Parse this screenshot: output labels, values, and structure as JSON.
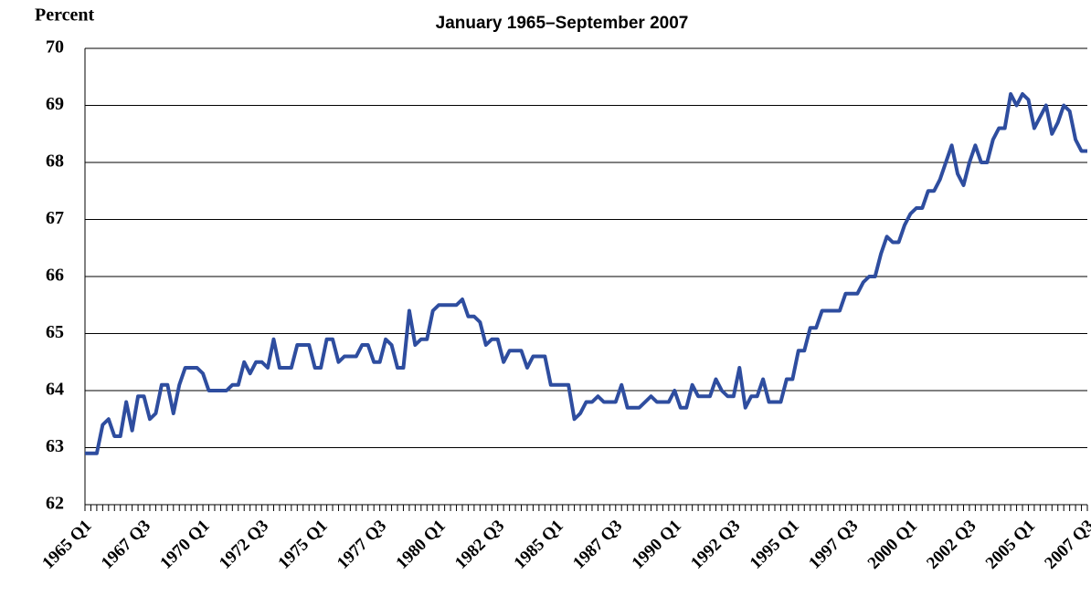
{
  "chart_data": {
    "type": "line",
    "subtitle": "January 1965–September 2007",
    "y_label": "Percent",
    "categories": [
      "1965 Q1",
      null,
      null,
      null,
      null,
      null,
      null,
      null,
      null,
      null,
      "1967 Q3",
      null,
      null,
      null,
      null,
      null,
      null,
      null,
      null,
      null,
      "1970 Q1",
      null,
      null,
      null,
      null,
      null,
      null,
      null,
      null,
      null,
      "1972 Q3",
      null,
      null,
      null,
      null,
      null,
      null,
      null,
      null,
      null,
      "1975 Q1",
      null,
      null,
      null,
      null,
      null,
      null,
      null,
      null,
      null,
      "1977 Q3",
      null,
      null,
      null,
      null,
      null,
      null,
      null,
      null,
      null,
      "1980 Q1",
      null,
      null,
      null,
      null,
      null,
      null,
      null,
      null,
      null,
      "1982 Q3",
      null,
      null,
      null,
      null,
      null,
      null,
      null,
      null,
      null,
      "1985 Q1",
      null,
      null,
      null,
      null,
      null,
      null,
      null,
      null,
      null,
      "1987 Q3",
      null,
      null,
      null,
      null,
      null,
      null,
      null,
      null,
      null,
      "1990 Q1",
      null,
      null,
      null,
      null,
      null,
      null,
      null,
      null,
      null,
      "1992 Q3",
      null,
      null,
      null,
      null,
      null,
      null,
      null,
      null,
      null,
      "1995 Q1",
      null,
      null,
      null,
      null,
      null,
      null,
      null,
      null,
      null,
      "1997 Q3",
      null,
      null,
      null,
      null,
      null,
      null,
      null,
      null,
      null,
      "2000 Q1",
      null,
      null,
      null,
      null,
      null,
      null,
      null,
      null,
      null,
      "2002 Q3",
      null,
      null,
      null,
      null,
      null,
      null,
      null,
      null,
      null,
      "2005 Q1",
      null,
      null,
      null,
      null,
      null,
      null,
      null,
      null,
      null,
      "2007 Q3"
    ],
    "values": [
      62.9,
      62.9,
      62.9,
      63.4,
      63.5,
      63.2,
      63.2,
      63.8,
      63.3,
      63.9,
      63.9,
      63.5,
      63.6,
      64.1,
      64.1,
      63.6,
      64.1,
      64.4,
      64.4,
      64.4,
      64.3,
      64.0,
      64.0,
      64.0,
      64.0,
      64.1,
      64.1,
      64.5,
      64.3,
      64.5,
      64.5,
      64.4,
      64.9,
      64.4,
      64.4,
      64.4,
      64.8,
      64.8,
      64.8,
      64.4,
      64.4,
      64.9,
      64.9,
      64.5,
      64.6,
      64.6,
      64.6,
      64.8,
      64.8,
      64.5,
      64.5,
      64.9,
      64.8,
      64.4,
      64.4,
      65.4,
      64.8,
      64.9,
      64.9,
      65.4,
      65.5,
      65.5,
      65.5,
      65.5,
      65.6,
      65.3,
      65.3,
      65.2,
      64.8,
      64.9,
      64.9,
      64.5,
      64.7,
      64.7,
      64.7,
      64.4,
      64.6,
      64.6,
      64.6,
      64.1,
      64.1,
      64.1,
      64.1,
      63.5,
      63.6,
      63.8,
      63.8,
      63.9,
      63.8,
      63.8,
      63.8,
      64.1,
      63.7,
      63.7,
      63.7,
      63.8,
      63.9,
      63.8,
      63.8,
      63.8,
      64.0,
      63.7,
      63.7,
      64.1,
      63.9,
      63.9,
      63.9,
      64.2,
      64.0,
      63.9,
      63.9,
      64.4,
      63.7,
      63.9,
      63.9,
      64.2,
      63.8,
      63.8,
      63.8,
      64.2,
      64.2,
      64.7,
      64.7,
      65.1,
      65.1,
      65.4,
      65.4,
      65.4,
      65.4,
      65.7,
      65.7,
      65.7,
      65.9,
      66.0,
      66.0,
      66.4,
      66.7,
      66.6,
      66.6,
      66.9,
      67.1,
      67.2,
      67.2,
      67.5,
      67.5,
      67.7,
      68.0,
      68.3,
      67.8,
      67.6,
      68.0,
      68.3,
      68.0,
      68.0,
      68.4,
      68.6,
      68.6,
      69.2,
      69.0,
      69.2,
      69.1,
      68.6,
      68.8,
      69.0,
      68.5,
      68.7,
      69.0,
      68.9,
      68.4,
      68.2,
      68.2
    ],
    "color": "#2e4d9f",
    "ylim": [
      62,
      70
    ],
    "yticks": [
      62,
      63,
      64,
      65,
      66,
      67,
      68,
      69,
      70
    ],
    "grid": true
  }
}
